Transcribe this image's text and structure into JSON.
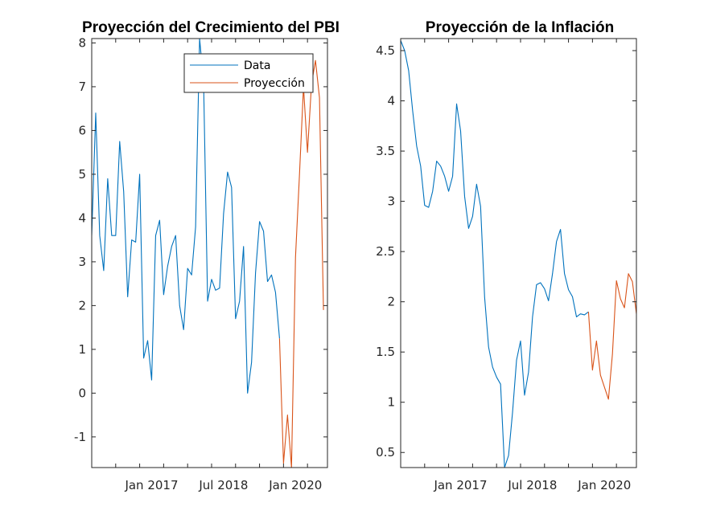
{
  "colors": {
    "data": "#0072BD",
    "forecast": "#D95319",
    "axis": "#262626"
  },
  "chart_data": [
    {
      "type": "line",
      "title": "Proyección del Crecimiento del PBI",
      "xlabel": "",
      "ylabel": "",
      "x_ticks": [
        "Jan 2017",
        "Jul 2018",
        "Jan 2020"
      ],
      "y_ticks": [
        "-1",
        "0",
        "1",
        "2",
        "3",
        "4",
        "5",
        "6",
        "7",
        "8"
      ],
      "ylim": [
        -1.7,
        8.1
      ],
      "legend": {
        "position": "top-right",
        "entries": [
          "Data",
          "Proyección"
        ]
      },
      "grid": false,
      "series": [
        {
          "name": "Data",
          "values": [
            3.6,
            6.4,
            3.6,
            2.8,
            4.9,
            3.6,
            3.6,
            5.75,
            4.6,
            2.2,
            3.5,
            3.45,
            5.0,
            0.8,
            1.2,
            0.3,
            3.6,
            3.95,
            2.25,
            2.9,
            3.35,
            3.6,
            2.0,
            1.45,
            2.85,
            2.7,
            3.8,
            8.1,
            7.1,
            2.1,
            2.6,
            2.35,
            2.4,
            4.1,
            5.05,
            4.7,
            1.7,
            2.1,
            3.35,
            0.0,
            0.7,
            2.75,
            3.92,
            3.7,
            2.55,
            2.7,
            2.3,
            1.25
          ]
        },
        {
          "name": "Proyección",
          "start_index": 47,
          "values": [
            1.25,
            -1.6,
            -0.5,
            -1.7,
            3.1,
            5.0,
            7.0,
            5.5,
            7.05,
            7.6,
            6.75,
            1.9
          ]
        }
      ]
    },
    {
      "type": "line",
      "title": "Proyección de la Inflación",
      "xlabel": "",
      "ylabel": "",
      "x_ticks": [
        "Jan 2017",
        "Jul 2018",
        "Jan 2020"
      ],
      "y_ticks": [
        "0.5",
        "1",
        "1.5",
        "2",
        "2.5",
        "3",
        "3.5",
        "4",
        "4.5"
      ],
      "ylim": [
        0.35,
        4.62
      ],
      "legend": null,
      "grid": false,
      "series": [
        {
          "name": "Data",
          "values": [
            4.6,
            4.5,
            4.3,
            3.9,
            3.55,
            3.35,
            2.96,
            2.94,
            3.1,
            3.4,
            3.35,
            3.25,
            3.1,
            3.25,
            3.97,
            3.7,
            3.05,
            2.73,
            2.85,
            3.17,
            2.95,
            2.05,
            1.55,
            1.35,
            1.25,
            1.18,
            0.35,
            0.47,
            0.9,
            1.42,
            1.61,
            1.07,
            1.3,
            1.85,
            2.17,
            2.19,
            2.13,
            2.01,
            2.28,
            2.6,
            2.72,
            2.28,
            2.12,
            2.05,
            1.85,
            1.88,
            1.87,
            1.9
          ]
        },
        {
          "name": "Proyección",
          "start_index": 47,
          "values": [
            1.9,
            1.32,
            1.61,
            1.27,
            1.15,
            1.03,
            1.48,
            2.21,
            2.03,
            1.94,
            2.28,
            2.2,
            1.88
          ]
        }
      ]
    }
  ]
}
